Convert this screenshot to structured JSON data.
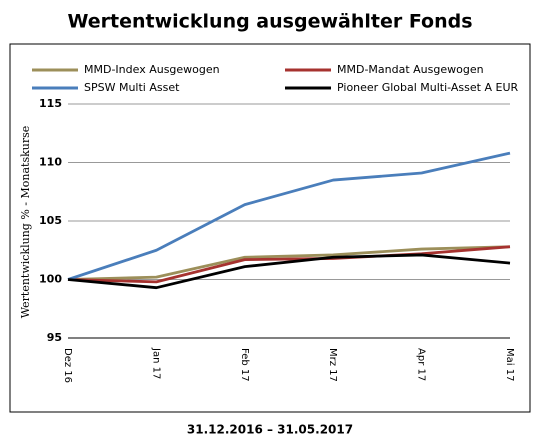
{
  "chart_data": {
    "type": "line",
    "title": "Wertentwicklung ausgewählter Fonds",
    "subtitle": "31.12.2016 – 31.05.2017",
    "y_label": "Wertentwicklung % - Monatskurse",
    "categories": [
      "Dez 16",
      "Jan 17",
      "Feb 17",
      "Mrz 17",
      "Apr 17",
      "Mai 17"
    ],
    "series": [
      {
        "name": "MMD-Index Ausgewogen",
        "color": "#9c8f5a",
        "values": [
          100,
          100.2,
          101.9,
          102.1,
          102.6,
          102.8
        ]
      },
      {
        "name": "MMD-Mandat Ausgewogen",
        "color": "#a6322f",
        "values": [
          100,
          99.8,
          101.7,
          101.8,
          102.2,
          102.8
        ]
      },
      {
        "name": "SPSW Multi Asset",
        "color": "#4a7ebb",
        "values": [
          100,
          102.5,
          106.4,
          108.5,
          109.1,
          110.8
        ]
      },
      {
        "name": "Pioneer Global Multi-Asset A EUR",
        "color": "#000000",
        "values": [
          100,
          99.3,
          101.1,
          101.9,
          102.1,
          101.4
        ]
      }
    ],
    "ylim": [
      95,
      115
    ],
    "yticks": [
      95,
      100,
      105,
      110,
      115
    ],
    "grid": true,
    "legend": "top"
  }
}
